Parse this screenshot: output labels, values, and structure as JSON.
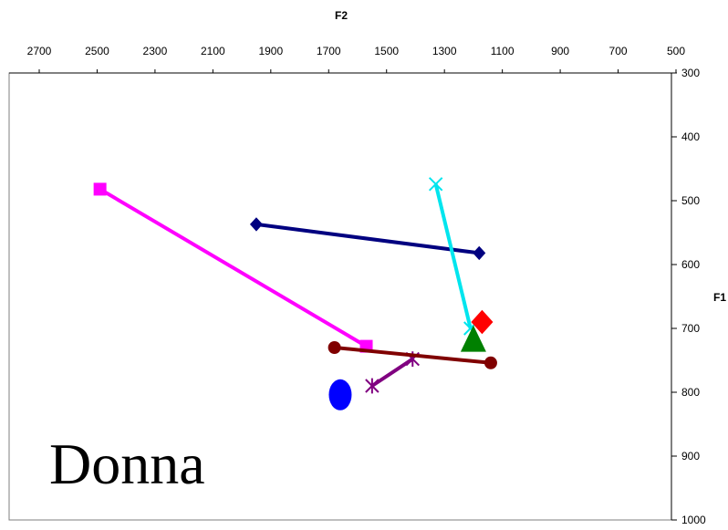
{
  "chart_data": {
    "type": "scatter",
    "title": "",
    "speaker_label": "Donna",
    "xlabel": "F2",
    "ylabel": "F1",
    "x_axis_position": "top",
    "y_axis_position": "right",
    "x_reversed": true,
    "y_reversed": true,
    "xlim": [
      500,
      2800
    ],
    "ylim": [
      300,
      1000
    ],
    "x_ticks": [
      "2700",
      "2500",
      "2300",
      "2100",
      "1900",
      "1700",
      "1500",
      "1300",
      "1100",
      "900",
      "700",
      "500"
    ],
    "y_ticks": [
      "300",
      "400",
      "500",
      "600",
      "700",
      "800",
      "900",
      "1000"
    ],
    "grid": false,
    "legend": "none",
    "series": [
      {
        "marker": "diamond",
        "color": "#000080",
        "line": true,
        "points": [
          [
            1950,
            537
          ],
          [
            1180,
            582
          ]
        ]
      },
      {
        "marker": "square",
        "color": "#ff00ff",
        "line": true,
        "points": [
          [
            2490,
            482
          ],
          [
            1570,
            728
          ]
        ]
      },
      {
        "marker": "x",
        "color": "#00e5ee",
        "line": true,
        "points": [
          [
            1330,
            474
          ],
          [
            1210,
            700
          ]
        ]
      },
      {
        "marker": "asterisk",
        "color": "#800080",
        "line": true,
        "points": [
          [
            1550,
            790
          ],
          [
            1410,
            748
          ]
        ]
      },
      {
        "marker": "circle",
        "color": "#800000",
        "line": true,
        "points": [
          [
            1680,
            730
          ],
          [
            1140,
            754
          ]
        ]
      },
      {
        "marker": "circle",
        "color": "#0000ff",
        "line": false,
        "large": true,
        "points": [
          [
            1660,
            804
          ]
        ]
      },
      {
        "marker": "triangle",
        "color": "#008000",
        "line": false,
        "large": true,
        "points": [
          [
            1200,
            718
          ]
        ]
      },
      {
        "marker": "diamond",
        "color": "#ff0000",
        "line": false,
        "large": true,
        "points": [
          [
            1170,
            690
          ]
        ]
      }
    ]
  }
}
